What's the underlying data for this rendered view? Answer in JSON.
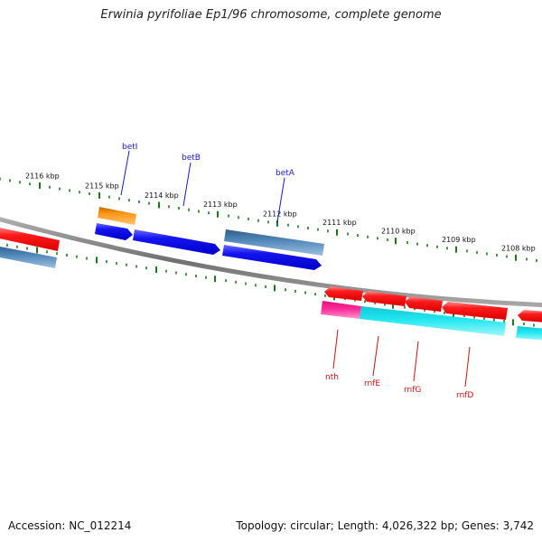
{
  "title": "Erwinia pyrifoliae Ep1/96 chromosome, complete genome",
  "footer": {
    "accession_label": "Accession:",
    "accession": "NC_012214",
    "topology_label": "Topology:",
    "topology": "circular",
    "length_label": "Length:",
    "length": "4,026,322 bp",
    "genes_label": "Genes:",
    "genes": "3,742"
  },
  "colors": {
    "backbone": "#8a8a8a",
    "ticks": "#1a7a1a",
    "forward_gene": "#1010e8",
    "reverse_gene": "#ee1111",
    "forward_label": "#1a1acc",
    "reverse_label": "#cc1111",
    "steel_blue": "#4a7fae",
    "orange": "#ff9a1a",
    "magenta": "#ff2a9a",
    "cyan": "#22e8f0"
  },
  "ticks": [
    {
      "label": "2116 kbp"
    },
    {
      "label": "2115 kbp"
    },
    {
      "label": "2114 kbp"
    },
    {
      "label": "2113 kbp"
    },
    {
      "label": "2112 kbp"
    },
    {
      "label": "2111 kbp"
    },
    {
      "label": "2110 kbp"
    },
    {
      "label": "2109 kbp"
    },
    {
      "label": "2108 kbp"
    }
  ],
  "genes_forward": [
    {
      "name": "betI"
    },
    {
      "name": "betB"
    },
    {
      "name": "betA"
    }
  ],
  "genes_reverse": [
    {
      "name": "nth"
    },
    {
      "name": "rnfE"
    },
    {
      "name": "rnfG"
    },
    {
      "name": "rnfD"
    }
  ]
}
